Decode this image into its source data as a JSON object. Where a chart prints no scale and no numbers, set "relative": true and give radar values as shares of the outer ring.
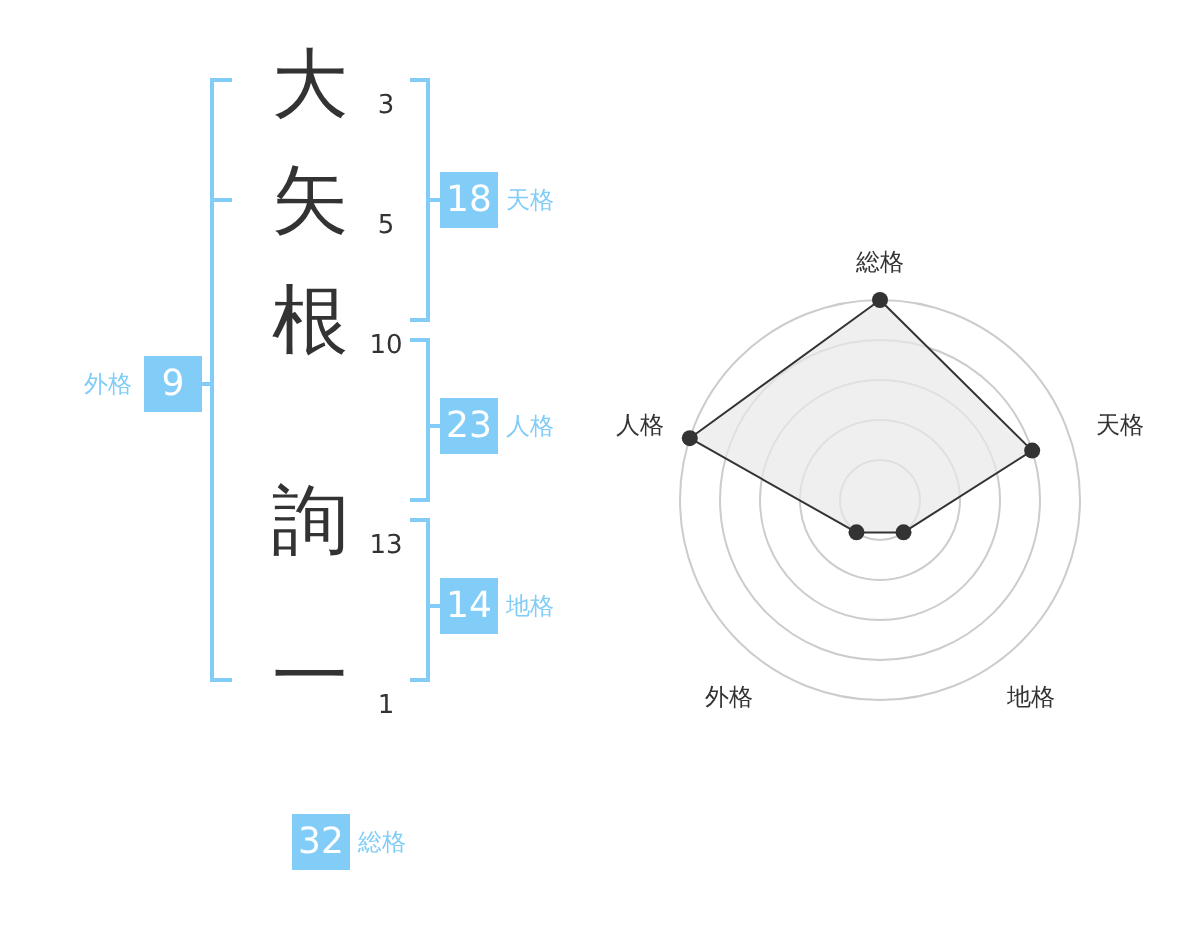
{
  "chart_data": [
    {
      "type": "other",
      "annotations": [
        "大",
        "3",
        "矢",
        "5",
        "根",
        "10",
        "詢",
        "13",
        "一",
        "1",
        "18",
        "天格",
        "23",
        "人格",
        "14",
        "地格",
        "9",
        "外格",
        "32",
        "総格"
      ]
    },
    {
      "type": "radar",
      "categories": [
        "総格",
        "天格",
        "地格",
        "外格",
        "人格"
      ],
      "relative": true,
      "grid": true,
      "marker": "circle",
      "series": [
        {
          "color": "#333333",
          "values": [
            1,
            0.8,
            0.2,
            0.2,
            1
          ]
        }
      ]
    }
  ]
}
